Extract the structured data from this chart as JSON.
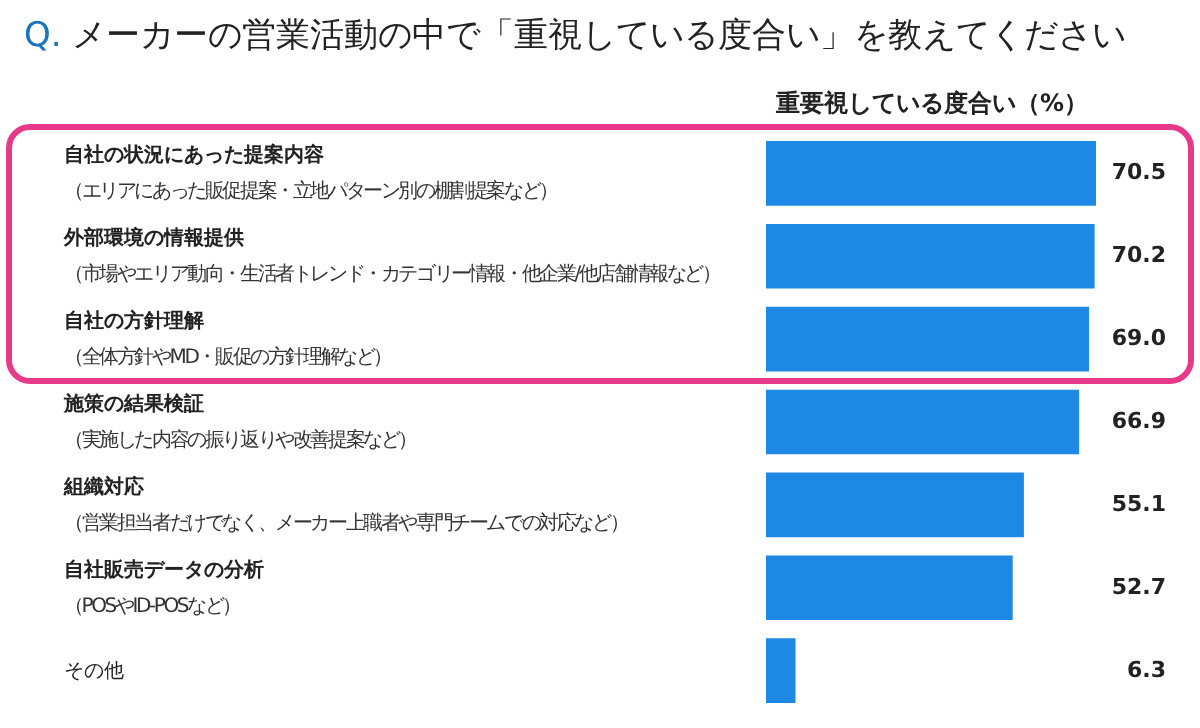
{
  "chart_data": {
    "type": "bar",
    "orientation": "horizontal",
    "title": "Q. メーカーの営業活動の中で「重視している度合い」を教えてください",
    "xlabel": "重要視している度合い（%）",
    "categories": [
      "自社の状況にあった提案内容（エリアにあった販促提案・立地パターン別の棚割提案など）",
      "外部環境の情報提供（市場やエリア動向・生活者トレンド・カテゴリー情報・他企業/他店舗情報など）",
      "自社の方針理解（全体方針やMD・販促の方針理解など）",
      "施策の結果検証（実施した内容の振り返りや改善提案など）",
      "組織対応（営業担当者だけでなく、メーカー上職者や専門チームでの対応など）",
      "自社販売データの分析（POSやID-POSなど）",
      "その他"
    ],
    "values": [
      70.5,
      70.2,
      69.0,
      66.9,
      55.1,
      52.7,
      6.3
    ],
    "color": "#1e88e5",
    "value_labels": [
      "70.5",
      "70.2",
      "69.0",
      "66.9",
      "55.1",
      "52.7",
      "6.3"
    ],
    "tick_labels": "y"
  }
}
